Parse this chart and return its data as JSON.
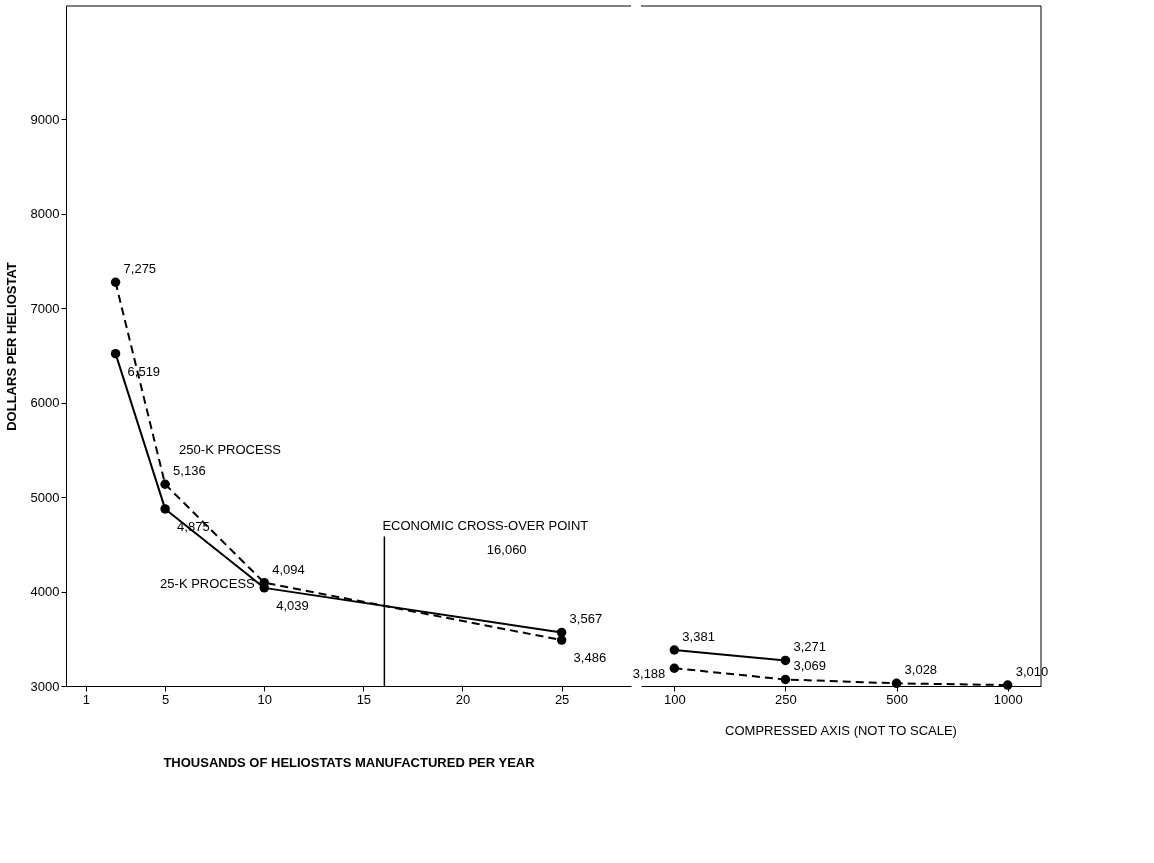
{
  "chart_data": [
    {
      "type": "line",
      "ylabel": "DOLLARS PER HELIOSTAT",
      "xlabel": "THOUSANDS OF HELIOSTATS MANUFACTURED PER YEAR",
      "xlim": [
        0,
        28.5
      ],
      "xticks": [
        1,
        5,
        10,
        15,
        20,
        25
      ],
      "ylim": [
        3000,
        10200
      ],
      "yticks": [
        3000,
        4000,
        5000,
        6000,
        7000,
        8000,
        9000
      ],
      "marker": "circle",
      "series": [
        {
          "name": "250-K PROCESS",
          "color": "#000000",
          "line_style": "dashed",
          "x": [
            2.5,
            5,
            10,
            25
          ],
          "values": [
            7275,
            5136,
            4094,
            3486
          ],
          "value_labels": [
            "7,275",
            "5,136",
            "4,094",
            "3,486"
          ]
        },
        {
          "name": "25-K PROCESS",
          "color": "#000000",
          "line_style": "solid",
          "x": [
            2.5,
            5,
            10,
            25
          ],
          "values": [
            6519,
            4875,
            4039,
            3567
          ],
          "value_labels": [
            "6,519",
            "4,875",
            "4,039",
            "3,567"
          ]
        }
      ],
      "ref_lines": [
        {
          "axis": "x",
          "value": 16.06,
          "label": "ECONOMIC CROSS-OVER POINT"
        }
      ],
      "annotations": [
        "16,060"
      ]
    },
    {
      "type": "line",
      "categories": [
        "100",
        "250",
        "500",
        "1000"
      ],
      "ylim": [
        3000,
        10200
      ],
      "tick_labels": "x",
      "marker": "circle",
      "series": [
        {
          "color": "#000000",
          "line_style": "dashed",
          "values": [
            3188,
            3069,
            3028,
            3010
          ],
          "value_labels": [
            "3,188",
            "3,069",
            "3,028",
            "3,010"
          ]
        },
        {
          "color": "#000000",
          "line_style": "solid",
          "values": [
            3381,
            3271,
            null,
            null
          ],
          "value_labels": [
            "3,381",
            "3,271",
            null,
            null
          ]
        }
      ],
      "annotations": [
        "COMPRESSED AXIS (NOT TO SCALE)"
      ]
    }
  ]
}
